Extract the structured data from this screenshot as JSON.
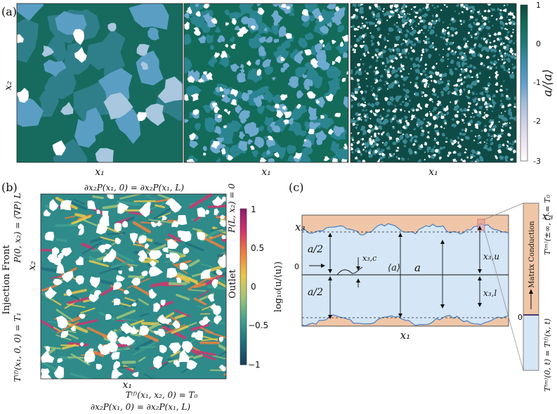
{
  "panel_a": {
    "label": "(a)",
    "x_label": "x₁",
    "y_label": "x₂",
    "colorbar": {
      "label": "a/⟨a⟩",
      "ticks": [
        "1",
        "0",
        "-1",
        "-2",
        "-3"
      ],
      "colors": [
        "#ffffff",
        "#ece3f0",
        "#cdd3e6",
        "#9fbcd9",
        "#5f9fca",
        "#3f8fb0",
        "#1e7a7a",
        "#136b58",
        "#0d4a40"
      ]
    },
    "maps": [
      {
        "pattern": "coarse"
      },
      {
        "pattern": "medium"
      },
      {
        "pattern": "fine"
      }
    ]
  },
  "panel_b": {
    "label": "(b)",
    "x_label": "x₁",
    "y_label": "x₂",
    "top_bc": "∂x₂P(x₁, 0) =    ∂x₂P(x₁, L)",
    "bottom_bc_1": "T⁽ᶠ⁾(x₁, x₂, 0) = T₀",
    "bottom_bc_2": "∂x₂P(x₁, 0) =    ∂x₂P(x₁, L)",
    "left_title": "Injection Front",
    "left_bc_1": "P(0, x₂) = ⟨∇P⟩ L",
    "left_bc_2": "T⁽ᶠ⁾(x₁, 0, 0) = T₁",
    "right_title": "Outlet",
    "right_bc": "P(L, x₂) = 0",
    "colorbar": {
      "label": "log₁₀(u/⟨u⟩)",
      "ticks": [
        "1",
        "0.5",
        "0",
        "−0.5",
        "−1"
      ],
      "colors": [
        "#8e1b70",
        "#d6336c",
        "#f0803c",
        "#e8c84a",
        "#9dc47a",
        "#3f9f8f",
        "#1f6f7e",
        "#163f5c"
      ]
    }
  },
  "panel_c": {
    "label": "(c)",
    "x_label": "x₁",
    "y_label": "x₃",
    "zero_label": "0",
    "half_top": "a/2",
    "half_bottom": "a/2",
    "x3c": "x₃,c",
    "mean_a": "⟨a⟩",
    "a": "a",
    "x3u": "x₃,u",
    "x3l": "x₃,l",
    "inset_axis": "x′₃",
    "inset_zero": "0",
    "inset_top": "T⁽ᵐ⁾(±∞, t) = T₀",
    "inset_mid": "Matrix Conduction",
    "inset_bottom": "T⁽ᵐ⁾(0, t) = T⁽ᶠ⁾(x, t)",
    "rock_color": "#f0c6a8",
    "fluid_color": "#d5e6f6",
    "wall_color": "#4a7fbf"
  }
}
